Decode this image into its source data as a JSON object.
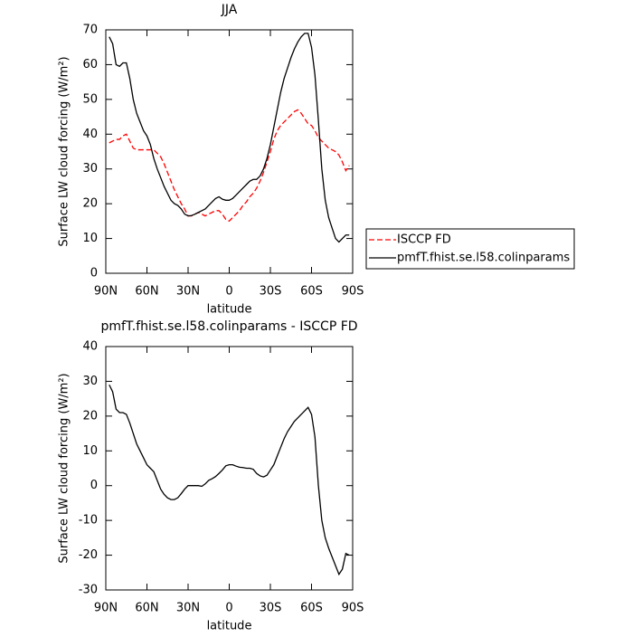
{
  "chart_data": [
    {
      "type": "line",
      "title": "JJA",
      "x_label": "latitude",
      "y_label": "Surface LW cloud forcing (W/m²)",
      "xlim": [
        90,
        -90
      ],
      "xticks": [
        {
          "value": 90,
          "label": "90N"
        },
        {
          "value": 60,
          "label": "60N"
        },
        {
          "value": 30,
          "label": "30N"
        },
        0,
        {
          "value": -30,
          "label": "30S"
        },
        {
          "value": -60,
          "label": "60S"
        },
        {
          "value": -90,
          "label": "90S"
        }
      ],
      "ylim": [
        0,
        70
      ],
      "yticks": [
        0,
        10,
        20,
        30,
        40,
        50,
        60,
        70
      ],
      "grid": false,
      "legend": "right-outside",
      "x": [
        87.5,
        85,
        82.5,
        80,
        77.5,
        75,
        72.5,
        70,
        67.5,
        65,
        62.5,
        60,
        57.5,
        55,
        52.5,
        50,
        47.5,
        45,
        42.5,
        40,
        37.5,
        35,
        32.5,
        30,
        27.5,
        25,
        22.5,
        20,
        17.5,
        15,
        12.5,
        10,
        7.5,
        5,
        2.5,
        0,
        -2.5,
        -5,
        -7.5,
        -10,
        -12.5,
        -15,
        -17.5,
        -20,
        -22.5,
        -25,
        -27.5,
        -30,
        -32.5,
        -35,
        -37.5,
        -40,
        -42.5,
        -45,
        -47.5,
        -50,
        -52.5,
        -55,
        -57.5,
        -60,
        -62.5,
        -65,
        -67.5,
        -70,
        -72.5,
        -75,
        -77.5,
        -80,
        -82.5,
        -85,
        -87.5
      ],
      "series": [
        {
          "name": "ISCCP FD",
          "color": "#ff0000",
          "style": "dashed",
          "values": [
            37.5,
            38,
            38.5,
            38.5,
            39.5,
            40,
            38,
            36,
            35.5,
            35.5,
            35.5,
            35.5,
            35.5,
            35.5,
            34.5,
            33.5,
            31.5,
            29,
            26.5,
            24,
            22,
            20,
            18.5,
            16.5,
            16.5,
            17,
            17.5,
            17,
            16.5,
            17,
            17.5,
            18,
            18,
            17,
            15.5,
            15,
            16,
            17,
            18,
            19.5,
            20.5,
            22,
            23,
            24.5,
            26.5,
            29,
            32,
            35,
            38.5,
            41,
            42.5,
            43.5,
            44.5,
            45.5,
            46.5,
            47,
            46,
            44.5,
            43,
            42.5,
            41,
            39,
            38,
            37,
            36,
            35.5,
            35,
            34,
            32,
            29.5,
            31
          ]
        },
        {
          "name": "pmfT.fhist.se.l58.colinparams",
          "color": "#000000",
          "style": "solid",
          "values": [
            68,
            66,
            60,
            59.5,
            60.5,
            60.5,
            56,
            50,
            46,
            43.5,
            41,
            39.5,
            37,
            33,
            30,
            27.5,
            25,
            23,
            21,
            20,
            19.5,
            18.5,
            17,
            16.5,
            16.6,
            17,
            17.5,
            18,
            18.5,
            19.5,
            20.5,
            21.5,
            22,
            21.3,
            21,
            21,
            21.5,
            22.5,
            23.5,
            24.5,
            25.5,
            26.5,
            27,
            27,
            28,
            30,
            33,
            37,
            42,
            47,
            52,
            56,
            59,
            62,
            64.5,
            66.5,
            68,
            69,
            69,
            65,
            57,
            44,
            30,
            21,
            16,
            13,
            10,
            9,
            10,
            11,
            11
          ]
        }
      ]
    },
    {
      "type": "line",
      "title": "pmfT.fhist.se.l58.colinparams - ISCCP FD",
      "x_label": "latitude",
      "y_label": "Surface LW cloud forcing (W/m²)",
      "xlim": [
        90,
        -90
      ],
      "xticks": [
        {
          "value": 90,
          "label": "90N"
        },
        {
          "value": 60,
          "label": "60N"
        },
        {
          "value": 30,
          "label": "30N"
        },
        0,
        {
          "value": -30,
          "label": "30S"
        },
        {
          "value": -60,
          "label": "60S"
        },
        {
          "value": -90,
          "label": "90S"
        }
      ],
      "ylim": [
        -30,
        40
      ],
      "yticks": [
        -30,
        -20,
        -10,
        0,
        10,
        20,
        30,
        40
      ],
      "grid": false,
      "x": [
        87.5,
        85,
        82.5,
        80,
        77.5,
        75,
        72.5,
        70,
        67.5,
        65,
        62.5,
        60,
        57.5,
        55,
        52.5,
        50,
        47.5,
        45,
        42.5,
        40,
        37.5,
        35,
        32.5,
        30,
        27.5,
        25,
        22.5,
        20,
        17.5,
        15,
        12.5,
        10,
        7.5,
        5,
        2.5,
        0,
        -2.5,
        -5,
        -7.5,
        -10,
        -12.5,
        -15,
        -17.5,
        -20,
        -22.5,
        -25,
        -27.5,
        -30,
        -32.5,
        -35,
        -37.5,
        -40,
        -42.5,
        -45,
        -47.5,
        -50,
        -52.5,
        -55,
        -57.5,
        -60,
        -62.5,
        -65,
        -67.5,
        -70,
        -72.5,
        -75,
        -77.5,
        -80,
        -82.5,
        -85,
        -87.5
      ],
      "series": [
        {
          "color": "#000000",
          "style": "solid",
          "values": [
            29,
            27,
            22,
            21,
            21,
            20.5,
            18,
            15,
            12,
            10,
            8,
            6,
            5,
            4,
            1.5,
            -1,
            -2.5,
            -3.5,
            -4,
            -4,
            -3.5,
            -2.3,
            -1,
            0,
            0,
            0,
            0,
            -0.2,
            0.5,
            1.5,
            2,
            2.6,
            3.5,
            4.5,
            5.7,
            6,
            6,
            5.6,
            5.3,
            5.2,
            5,
            5,
            4.7,
            3.5,
            2.8,
            2.5,
            3,
            4.5,
            6,
            8.5,
            11,
            13.5,
            15.5,
            17,
            18.5,
            19.5,
            20.5,
            21.5,
            22.5,
            20.5,
            14,
            0,
            -10,
            -15,
            -18,
            -20.5,
            -23,
            -25.5,
            -24,
            -19.5,
            -20
          ]
        }
      ]
    }
  ]
}
